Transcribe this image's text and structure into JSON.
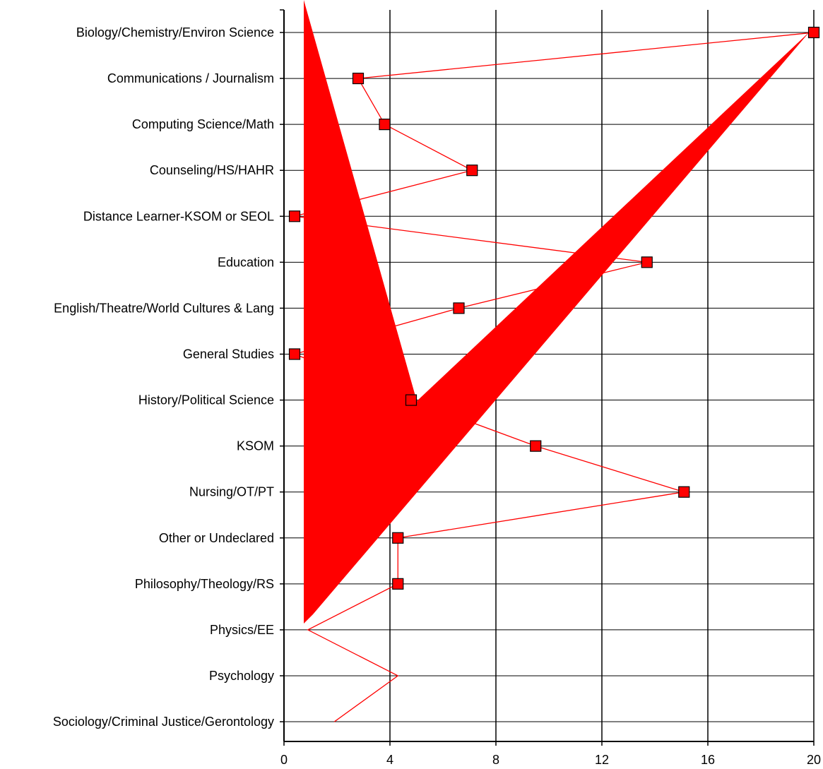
{
  "chart_data": {
    "type": "line",
    "orientation": "horizontal",
    "categories": [
      "Biology/Chemistry/Environ Science",
      "Communications / Journalism",
      "Computing Science/Math",
      "Counseling/HS/HAHR",
      "Distance Learner-KSOM or SEOL",
      "Education",
      "English/Theatre/World Cultures & Lang",
      "General Studies",
      "History/Political Science",
      "KSOM",
      "Nursing/OT/PT",
      "Other or Undeclared",
      "Philosophy/Theology/RS",
      "Physics/EE",
      "Psychology",
      "Sociology/Criminal Justice/Gerontology"
    ],
    "series": [
      {
        "values": [
          20,
          2.8,
          3.8,
          7.1,
          0.4,
          13.7,
          6.6,
          0.4,
          4.8,
          9.5,
          15.1,
          4.3,
          4.3,
          0.9,
          4.3,
          1.9
        ],
        "markers": [
          true,
          true,
          true,
          true,
          true,
          true,
          true,
          true,
          true,
          true,
          true,
          true,
          true,
          false,
          false,
          false
        ],
        "color": "#ff0000"
      }
    ],
    "xlim": [
      0,
      20
    ],
    "xticks": [
      "0",
      "4",
      "8",
      "12",
      "16",
      "20"
    ],
    "grid": true,
    "overlay_shape": "large red check-mark polygon drawn over the plot",
    "overlay_color": "#ff0000"
  }
}
